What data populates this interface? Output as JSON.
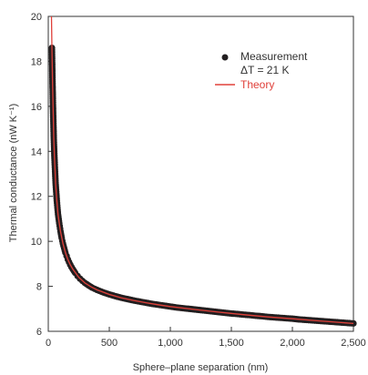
{
  "chart_data": {
    "type": "scatter",
    "xlabel": "Sphere–plane separation (nm)",
    "ylabel": "Thermal conductance (nW K⁻¹)",
    "xlim": [
      0,
      2500
    ],
    "ylim": [
      6,
      20
    ],
    "xticks": [
      0,
      500,
      1000,
      1500,
      2000,
      2500
    ],
    "xtick_labels": [
      "0",
      "500",
      "1,000",
      "1,500",
      "2,000",
      "2,500"
    ],
    "yticks": [
      6,
      8,
      10,
      12,
      14,
      16,
      18,
      20
    ],
    "ytick_labels": [
      "6",
      "8",
      "10",
      "12",
      "14",
      "16",
      "18",
      "20"
    ],
    "legend": {
      "placement": "top-right",
      "measurement_label": "Measurement",
      "measurement_sublabel": "ΔT = 21 K",
      "theory_label": "Theory"
    },
    "series": [
      {
        "name": "Measurement",
        "kind": "scatter",
        "color": "#231f20",
        "x": [
          30,
          35,
          40,
          45,
          50,
          55,
          60,
          65,
          70,
          75,
          80,
          90,
          100,
          110,
          120,
          130,
          140,
          150,
          160,
          170,
          180,
          190,
          200,
          220,
          240,
          260,
          280,
          300,
          330,
          360,
          400,
          450,
          500,
          550,
          600,
          650,
          700,
          750,
          800,
          850,
          900,
          950,
          1000,
          1050,
          1100,
          1150,
          1200,
          1250,
          1300,
          1350,
          1400,
          1450,
          1500,
          1550,
          1600,
          1650,
          1700,
          1750,
          1800,
          1850,
          1900,
          1950,
          2000,
          2050,
          2100,
          2150,
          2200,
          2250,
          2300,
          2350,
          2400,
          2450,
          2500
        ],
        "y": [
          18.6,
          17.0,
          15.7,
          14.6,
          13.8,
          13.2,
          12.6,
          12.2,
          11.8,
          11.5,
          11.2,
          10.8,
          10.45,
          10.15,
          9.9,
          9.7,
          9.5,
          9.35,
          9.2,
          9.08,
          8.96,
          8.86,
          8.77,
          8.6,
          8.46,
          8.34,
          8.24,
          8.15,
          8.04,
          7.94,
          7.84,
          7.73,
          7.64,
          7.56,
          7.49,
          7.43,
          7.37,
          7.32,
          7.27,
          7.22,
          7.18,
          7.14,
          7.1,
          7.06,
          7.03,
          7.0,
          6.97,
          6.94,
          6.91,
          6.88,
          6.85,
          6.82,
          6.79,
          6.77,
          6.74,
          6.72,
          6.69,
          6.67,
          6.64,
          6.62,
          6.6,
          6.58,
          6.56,
          6.53,
          6.51,
          6.49,
          6.47,
          6.45,
          6.43,
          6.41,
          6.39,
          6.37,
          6.35
        ]
      },
      {
        "name": "Theory",
        "kind": "line",
        "color": "#e0403a",
        "x": [
          26,
          30,
          35,
          40,
          45,
          50,
          55,
          60,
          65,
          70,
          80,
          90,
          100,
          120,
          140,
          160,
          180,
          200,
          250,
          300,
          350,
          400,
          500,
          600,
          700,
          800,
          900,
          1000,
          1200,
          1400,
          1600,
          1800,
          2000,
          2200,
          2400,
          2500
        ],
        "y": [
          20.0,
          18.6,
          17.0,
          15.7,
          14.6,
          13.8,
          13.2,
          12.6,
          12.2,
          11.8,
          11.2,
          10.8,
          10.45,
          9.9,
          9.5,
          9.2,
          8.96,
          8.77,
          8.4,
          8.15,
          7.98,
          7.84,
          7.64,
          7.49,
          7.37,
          7.27,
          7.18,
          7.1,
          6.97,
          6.85,
          6.74,
          6.64,
          6.56,
          6.47,
          6.39,
          6.35
        ]
      }
    ]
  }
}
